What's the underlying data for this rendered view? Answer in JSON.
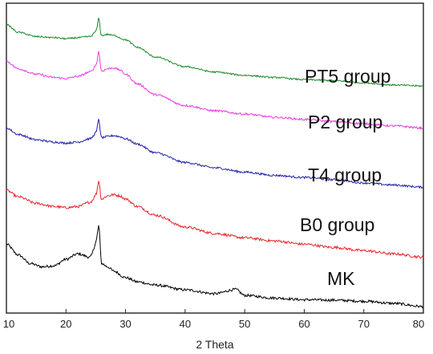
{
  "chart_data": {
    "type": "line",
    "xlabel": "2 Theta",
    "ylabel": "",
    "xlim": [
      10,
      80
    ],
    "xticks": [
      10,
      20,
      30,
      40,
      50,
      60,
      70,
      80
    ],
    "y_ticks_shown": false,
    "grid": false,
    "legend": "inline labels to the right of each curve",
    "series": [
      {
        "name": "MK",
        "color": "#000000",
        "x": [
          10,
          12,
          14,
          16,
          18,
          20,
          22,
          24,
          25.5,
          26,
          27,
          28,
          30,
          32,
          35,
          40,
          45,
          48.5,
          50,
          55,
          60,
          65,
          70,
          75,
          80
        ],
        "y": [
          3.2,
          2.7,
          2.3,
          2.15,
          2.2,
          2.5,
          2.75,
          2.6,
          3.55,
          2.3,
          2.15,
          1.95,
          1.65,
          1.45,
          1.3,
          1.08,
          0.9,
          1.1,
          0.82,
          0.7,
          0.62,
          0.6,
          0.55,
          0.45,
          0.3
        ],
        "noise": 0.05
      },
      {
        "name": "B0 group",
        "color": "#e8262b",
        "x": [
          10,
          12,
          15,
          18,
          20,
          22,
          24,
          25.5,
          26,
          27,
          28,
          29,
          30,
          32,
          35,
          40,
          45,
          50,
          55,
          60,
          65,
          70,
          75,
          80
        ],
        "y": [
          5.7,
          5.4,
          5.1,
          4.95,
          4.9,
          4.95,
          5.15,
          5.65,
          5.3,
          5.45,
          5.5,
          5.45,
          5.3,
          4.95,
          4.55,
          4.0,
          3.7,
          3.5,
          3.35,
          3.2,
          3.05,
          2.9,
          2.75,
          2.6
        ],
        "noise": 0.05
      },
      {
        "name": "T4 group",
        "color": "#2222a8",
        "x": [
          10,
          12,
          15,
          18,
          20,
          22,
          24,
          25.5,
          26,
          27,
          28,
          29,
          30,
          32,
          35,
          40,
          45,
          50,
          55,
          60,
          65,
          70,
          75,
          80
        ],
        "y": [
          8.6,
          8.3,
          8.05,
          7.95,
          7.9,
          7.95,
          8.1,
          8.5,
          8.15,
          8.2,
          8.25,
          8.2,
          8.1,
          7.85,
          7.45,
          7.0,
          6.75,
          6.55,
          6.4,
          6.3,
          6.2,
          6.05,
          5.95,
          5.85
        ],
        "noise": 0.04
      },
      {
        "name": "P2 group",
        "color": "#e83ee0",
        "x": [
          10,
          12,
          15,
          18,
          20,
          22,
          24,
          25.5,
          26,
          27,
          28,
          29,
          30,
          32,
          35,
          40,
          45,
          50,
          55,
          60,
          65,
          70,
          75,
          80
        ],
        "y": [
          11.7,
          11.35,
          11.1,
          10.95,
          10.9,
          11.0,
          11.2,
          11.65,
          11.25,
          11.35,
          11.4,
          11.3,
          11.1,
          10.65,
          10.15,
          9.65,
          9.4,
          9.25,
          9.1,
          9.0,
          8.9,
          8.8,
          8.7,
          8.6
        ],
        "noise": 0.04
      },
      {
        "name": "PT5 group",
        "color": "#1a8a2a",
        "x": [
          10,
          12,
          15,
          18,
          20,
          22,
          24,
          25.5,
          26,
          27,
          28,
          30,
          32,
          35,
          40,
          45,
          50,
          55,
          60,
          65,
          70,
          75,
          80
        ],
        "y": [
          13.4,
          13.05,
          12.85,
          12.8,
          12.75,
          12.8,
          12.85,
          13.2,
          12.9,
          12.95,
          12.9,
          12.7,
          12.35,
          11.9,
          11.45,
          11.2,
          11.05,
          10.95,
          10.85,
          10.8,
          10.7,
          10.6,
          10.55
        ],
        "noise": 0.03
      }
    ],
    "ylim": [
      0,
      14.4
    ]
  }
}
